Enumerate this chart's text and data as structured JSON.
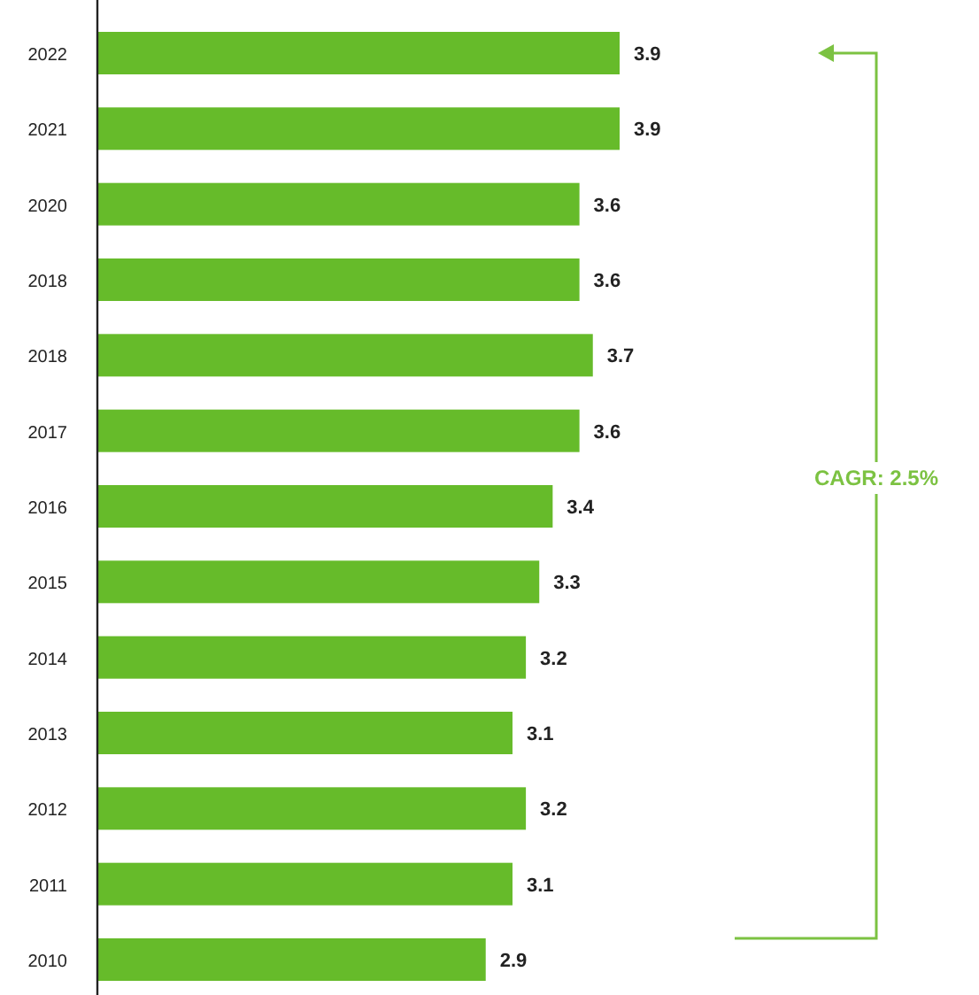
{
  "chart_data": {
    "type": "bar",
    "orientation": "horizontal",
    "categories": [
      "2022",
      "2021",
      "2020",
      "2018",
      "2018",
      "2017",
      "2016",
      "2015",
      "2014",
      "2013",
      "2012",
      "2011",
      "2010"
    ],
    "values": [
      3.9,
      3.9,
      3.6,
      3.6,
      3.7,
      3.6,
      3.4,
      3.3,
      3.2,
      3.1,
      3.2,
      3.1,
      2.9
    ],
    "color": "#66bb2a",
    "data_labels": true,
    "annotations": [
      "CAGR: 2.5%"
    ]
  }
}
